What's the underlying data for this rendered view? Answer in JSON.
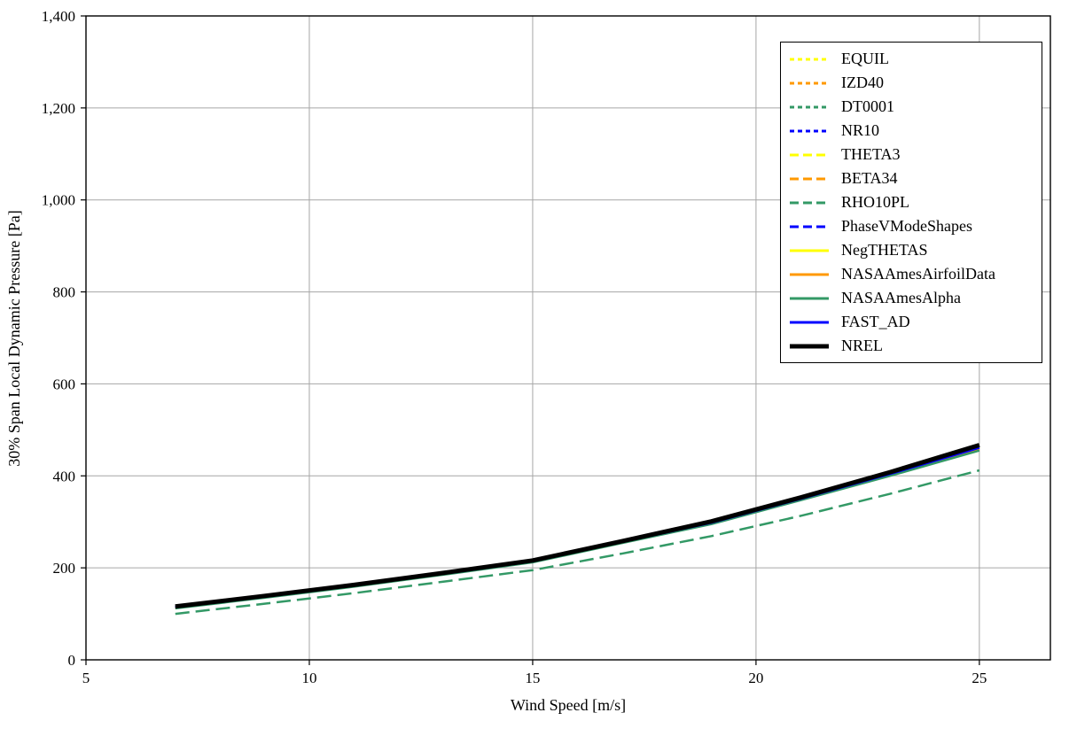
{
  "chart_data": {
    "type": "line",
    "title": "",
    "xlabel": "Wind Speed [m/s]",
    "ylabel": "30% Span Local Dynamic Pressure [Pa]",
    "xlim": [
      5,
      26.59
    ],
    "ylim": [
      0,
      1400
    ],
    "x_ticks": [
      5,
      10,
      15,
      20,
      25
    ],
    "x_tick_labels": [
      "5",
      "10",
      "15",
      "20",
      "25"
    ],
    "y_ticks": [
      0,
      200,
      400,
      600,
      800,
      1000,
      1200,
      1400
    ],
    "y_tick_labels": [
      "0",
      "200",
      "400",
      "600",
      "800",
      "1,000",
      "1,200",
      "1,400"
    ],
    "grid": true,
    "legend_position": "top-right",
    "x": [
      7,
      9,
      11,
      13,
      15,
      17,
      19,
      21,
      23,
      25
    ],
    "series": [
      {
        "name": "EQUIL",
        "color": "#FFFF00",
        "dash": "short",
        "width": 2.5,
        "values": [
          115,
          138,
          162,
          188,
          215,
          257,
          300,
          352,
          406,
          465
        ]
      },
      {
        "name": "IZD40",
        "color": "#FF9900",
        "dash": "short",
        "width": 2.5,
        "values": [
          115,
          138,
          162,
          188,
          215,
          257,
          300,
          352,
          406,
          465
        ]
      },
      {
        "name": "DT0001",
        "color": "#339966",
        "dash": "short",
        "width": 2.5,
        "values": [
          115,
          138,
          162,
          188,
          215,
          257,
          300,
          352,
          406,
          465
        ]
      },
      {
        "name": "NR10",
        "color": "#0000FF",
        "dash": "short",
        "width": 2.5,
        "values": [
          115,
          138,
          162,
          188,
          215,
          257,
          300,
          352,
          406,
          465
        ]
      },
      {
        "name": "THETA3",
        "color": "#FFFF00",
        "dash": "long",
        "width": 2.5,
        "values": [
          115,
          138,
          162,
          188,
          215,
          257,
          300,
          352,
          406,
          465
        ]
      },
      {
        "name": "BETA34",
        "color": "#FF9900",
        "dash": "long",
        "width": 2.5,
        "values": [
          115,
          138,
          162,
          188,
          215,
          257,
          300,
          352,
          406,
          465
        ]
      },
      {
        "name": "RHO10PL",
        "color": "#339966",
        "dash": "long",
        "width": 2.5,
        "values": [
          100,
          122,
          145,
          170,
          195,
          231,
          269,
          313,
          361,
          412
        ]
      },
      {
        "name": "PhaseVModeShapes",
        "color": "#0000FF",
        "dash": "long",
        "width": 2.5,
        "values": [
          115,
          138,
          162,
          188,
          215,
          257,
          300,
          352,
          406,
          465
        ]
      },
      {
        "name": "NegTHETAS",
        "color": "#FFFF00",
        "dash": "solid",
        "width": 2.5,
        "values": [
          113,
          136,
          160,
          186,
          213,
          255,
          297,
          349,
          402,
          458
        ]
      },
      {
        "name": "NASAAmesAirfoilData",
        "color": "#FF9900",
        "dash": "solid",
        "width": 2.5,
        "values": [
          113,
          136,
          160,
          186,
          213,
          255,
          297,
          349,
          402,
          458
        ]
      },
      {
        "name": "NASAAmesAlpha",
        "color": "#339966",
        "dash": "solid",
        "width": 2.5,
        "values": [
          112,
          135,
          159,
          185,
          212,
          254,
          295,
          347,
          400,
          455
        ]
      },
      {
        "name": "FAST_AD",
        "color": "#0000FF",
        "dash": "solid",
        "width": 2.5,
        "values": [
          114,
          137,
          161,
          187,
          214,
          256,
          298,
          350,
          404,
          461
        ]
      },
      {
        "name": "NREL",
        "color": "#000000",
        "dash": "solid",
        "width": 5,
        "values": [
          116,
          139,
          163,
          189,
          216,
          258,
          301,
          353,
          408,
          467
        ]
      }
    ]
  }
}
